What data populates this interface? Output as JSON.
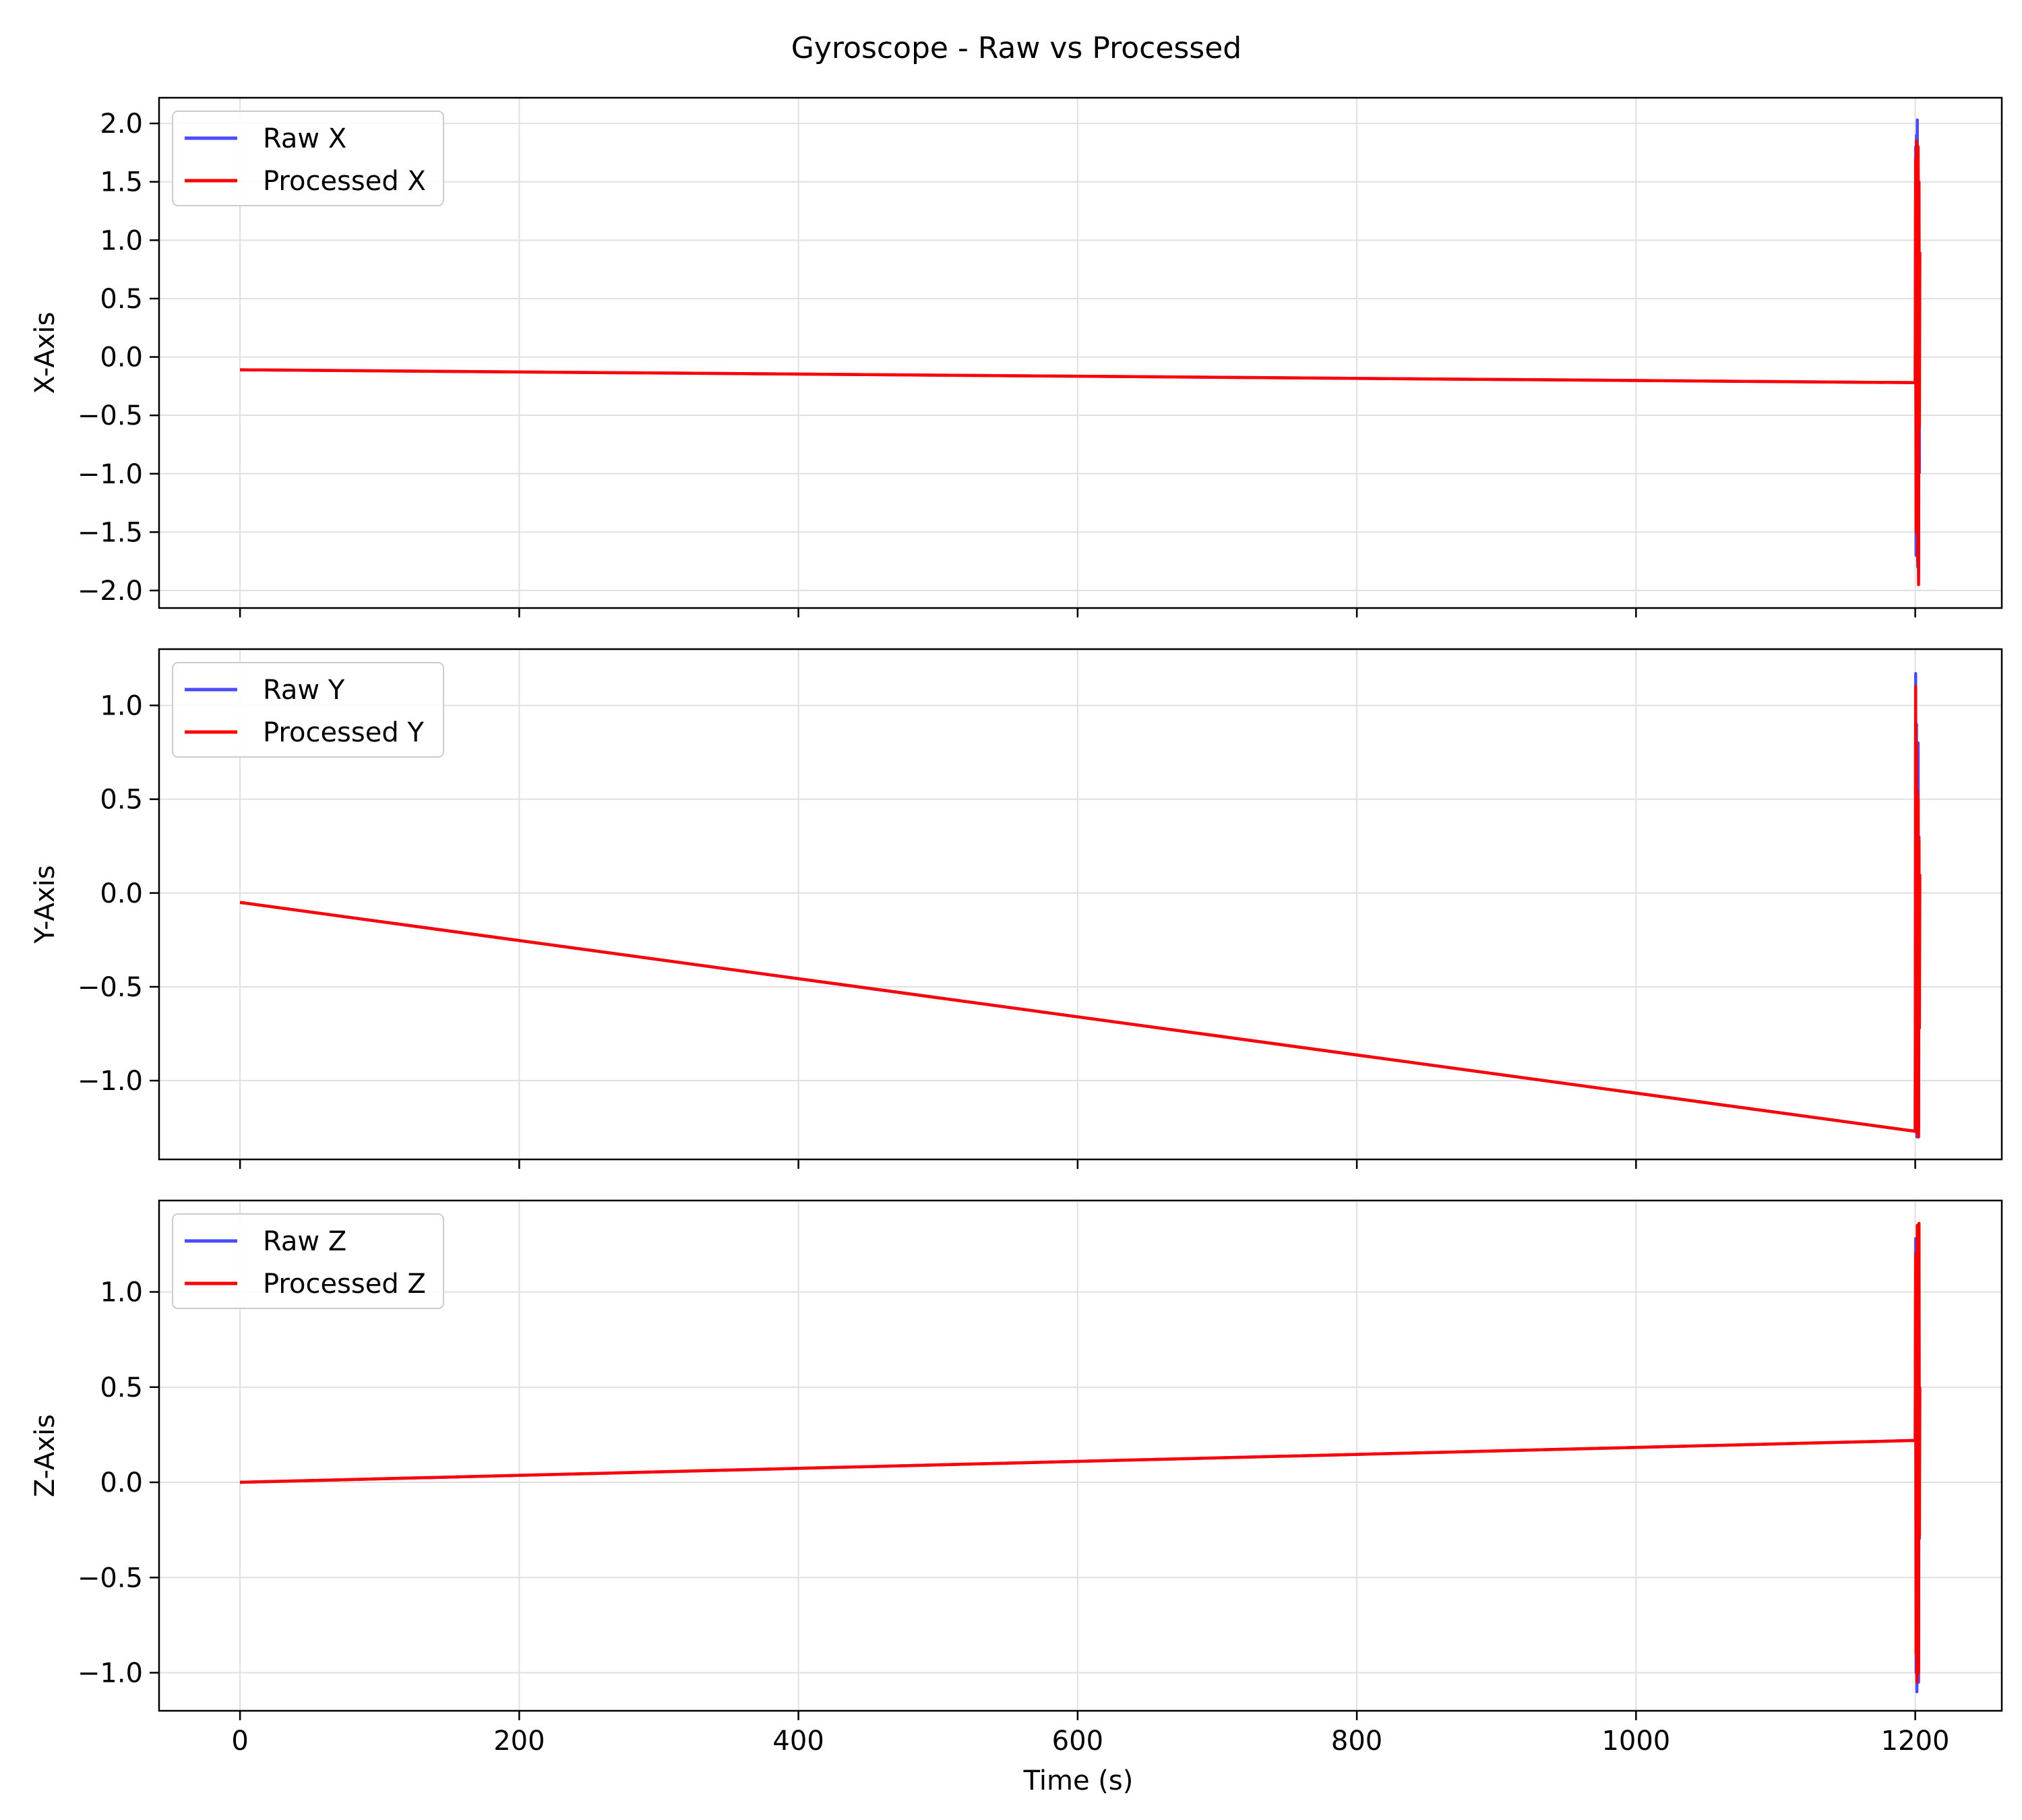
{
  "title": "Gyroscope - Raw vs Processed",
  "xlabel": "Time (s)",
  "chart_data": [
    {
      "type": "line",
      "ylabel": "X-Axis",
      "xlim": [
        -58,
        1262
      ],
      "ylim": [
        -2.15,
        2.22
      ],
      "xticks": [
        0,
        200,
        400,
        600,
        800,
        1000,
        1200
      ],
      "xtick_labels": [
        "0",
        "200",
        "400",
        "600",
        "800",
        "1000",
        "1200"
      ],
      "yticks": [
        -2.0,
        -1.5,
        -1.0,
        -0.5,
        0.0,
        0.5,
        1.0,
        1.5,
        2.0
      ],
      "ytick_labels": [
        "−2.0",
        "−1.5",
        "−1.0",
        "−0.5",
        "0.0",
        "0.5",
        "1.0",
        "1.5",
        "2.0"
      ],
      "grid": true,
      "legend": "top-left",
      "series": [
        {
          "name": "Raw X",
          "color": "#4a4aff",
          "x": [
            0,
            1200,
            1200.3,
            1200.6,
            1200.9,
            1201.2,
            1201.5,
            1201.8,
            1202.1,
            1202.4,
            1202.7,
            1203.0
          ],
          "y": [
            -0.11,
            -0.22,
            1.8,
            -1.7,
            1.9,
            -1.2,
            2.03,
            -1.8,
            1.6,
            -1.9,
            1.2,
            -1.0
          ]
        },
        {
          "name": "Processed X",
          "color": "#ff0000",
          "x": [
            0,
            1200,
            1200.3,
            1200.6,
            1200.9,
            1201.2,
            1201.5,
            1201.8,
            1202.1,
            1202.4,
            1202.7,
            1203.0,
            1203.3
          ],
          "y": [
            -0.11,
            -0.22,
            1.7,
            -1.5,
            1.85,
            -1.3,
            1.6,
            -1.75,
            1.8,
            -1.95,
            1.5,
            -0.6,
            0.9
          ]
        }
      ]
    },
    {
      "type": "line",
      "ylabel": "Y-Axis",
      "xlim": [
        -58,
        1262
      ],
      "ylim": [
        -1.42,
        1.3
      ],
      "xticks": [
        0,
        200,
        400,
        600,
        800,
        1000,
        1200
      ],
      "xtick_labels": [
        "0",
        "200",
        "400",
        "600",
        "800",
        "1000",
        "1200"
      ],
      "yticks": [
        -1.0,
        -0.5,
        0.0,
        0.5,
        1.0
      ],
      "ytick_labels": [
        "−1.0",
        "−0.5",
        "0.0",
        "0.5",
        "1.0"
      ],
      "grid": true,
      "legend": "top-left",
      "series": [
        {
          "name": "Raw Y",
          "color": "#4a4aff",
          "x": [
            0,
            1200,
            1200.3,
            1200.6,
            1200.9,
            1201.2,
            1201.5,
            1201.8,
            1202.1,
            1202.4,
            1202.7,
            1203.0
          ],
          "y": [
            -0.05,
            -1.27,
            1.17,
            -0.85,
            0.9,
            -1.3,
            0.5,
            -0.6,
            0.8,
            -1.25,
            0.3,
            -0.7
          ]
        },
        {
          "name": "Processed Y",
          "color": "#ff0000",
          "x": [
            0,
            1200,
            1200.3,
            1200.6,
            1200.9,
            1201.2,
            1201.5,
            1201.8,
            1202.1,
            1202.4,
            1202.7,
            1203.0,
            1203.3
          ],
          "y": [
            -0.05,
            -1.27,
            1.1,
            -0.6,
            0.8,
            -1.28,
            0.55,
            -0.75,
            0.5,
            -1.3,
            0.28,
            -0.72,
            0.1
          ]
        }
      ]
    },
    {
      "type": "line",
      "ylabel": "Z-Axis",
      "xlim": [
        -58,
        1262
      ],
      "ylim": [
        -1.2,
        1.48
      ],
      "xticks": [
        0,
        200,
        400,
        600,
        800,
        1000,
        1200
      ],
      "xtick_labels": [
        "0",
        "200",
        "400",
        "600",
        "800",
        "1000",
        "1200"
      ],
      "yticks": [
        -1.0,
        -0.5,
        0.0,
        0.5,
        1.0
      ],
      "ytick_labels": [
        "−1.0",
        "−0.5",
        "0.0",
        "0.5",
        "1.0"
      ],
      "grid": true,
      "legend": "top-left",
      "series": [
        {
          "name": "Raw Z",
          "color": "#4a4aff",
          "x": [
            0,
            1200,
            1200.3,
            1200.6,
            1200.9,
            1201.2,
            1201.5,
            1201.8,
            1202.1,
            1202.4,
            1202.7,
            1203.0
          ],
          "y": [
            0.0,
            0.22,
            1.28,
            -1.0,
            0.9,
            -1.1,
            1.2,
            -0.8,
            1.0,
            -1.05,
            0.6,
            -0.3
          ]
        },
        {
          "name": "Processed Z",
          "color": "#ff0000",
          "x": [
            0,
            1200,
            1200.3,
            1200.6,
            1200.9,
            1201.2,
            1201.5,
            1201.8,
            1202.1,
            1202.4,
            1202.7,
            1203.0,
            1203.3
          ],
          "y": [
            0.0,
            0.22,
            1.2,
            -0.9,
            0.8,
            -1.05,
            1.35,
            -0.7,
            1.1,
            -1.0,
            1.36,
            -0.28,
            0.5
          ]
        }
      ]
    }
  ]
}
